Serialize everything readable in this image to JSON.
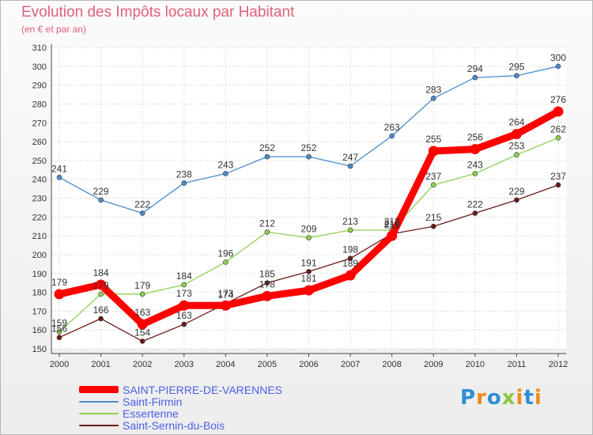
{
  "chart_data": {
    "type": "line",
    "title": "Evolution des Impôts locaux par Habitant",
    "subtitle": "(en € et par an)",
    "xlabel": "",
    "ylabel": "",
    "ylim": [
      150,
      310
    ],
    "yticks": [
      150,
      160,
      170,
      180,
      190,
      200,
      210,
      220,
      230,
      240,
      250,
      260,
      270,
      280,
      290,
      300,
      310
    ],
    "grid": true,
    "categories": [
      "2000",
      "2001",
      "2002",
      "2003",
      "2004",
      "2005",
      "2006",
      "2007",
      "2008",
      "2009",
      "2010",
      "2011",
      "2012"
    ],
    "series": [
      {
        "name": "SAINT-PIERRE-DE-VARENNES",
        "color": "#ff0000",
        "values": [
          179,
          184,
          163,
          173,
          173,
          178,
          181,
          189,
          210,
          255,
          256,
          264,
          276
        ],
        "labels": [
          "179",
          "184",
          "163",
          "173",
          "173",
          "178",
          "181",
          "189",
          "210",
          "255",
          "256",
          "264",
          "276"
        ]
      },
      {
        "name": "Saint-Firmin",
        "color": "#4a8ccc",
        "values": [
          241,
          229,
          222,
          238,
          243,
          252,
          252,
          247,
          263,
          283,
          294,
          295,
          300
        ],
        "labels": [
          "241",
          "229",
          "222",
          "238",
          "243",
          "252",
          "252",
          "247",
          "263",
          "283",
          "294",
          "295",
          "300"
        ]
      },
      {
        "name": "Essertenne",
        "color": "#8fd14f",
        "values": [
          159,
          179,
          179,
          184,
          196,
          212,
          209,
          213,
          213,
          237,
          243,
          253,
          262
        ],
        "labels": [
          "159",
          "179",
          "179",
          "184",
          "196",
          "212",
          "209",
          "213",
          "213",
          "237",
          "243",
          "253",
          "262"
        ]
      },
      {
        "name": "Saint-Sernin-du-Bois",
        "color": "#6b1a1a",
        "values": [
          156,
          166,
          154,
          163,
          174,
          185,
          191,
          198,
          211,
          215,
          222,
          229,
          237
        ],
        "labels": [
          "156",
          "166",
          "154",
          "163",
          "174",
          "185",
          "191",
          "198",
          "211",
          "215",
          "222",
          "229",
          "237"
        ]
      }
    ]
  },
  "logo": {
    "letters": [
      "P",
      "r",
      "o",
      "x",
      "i",
      "t",
      "i"
    ]
  }
}
